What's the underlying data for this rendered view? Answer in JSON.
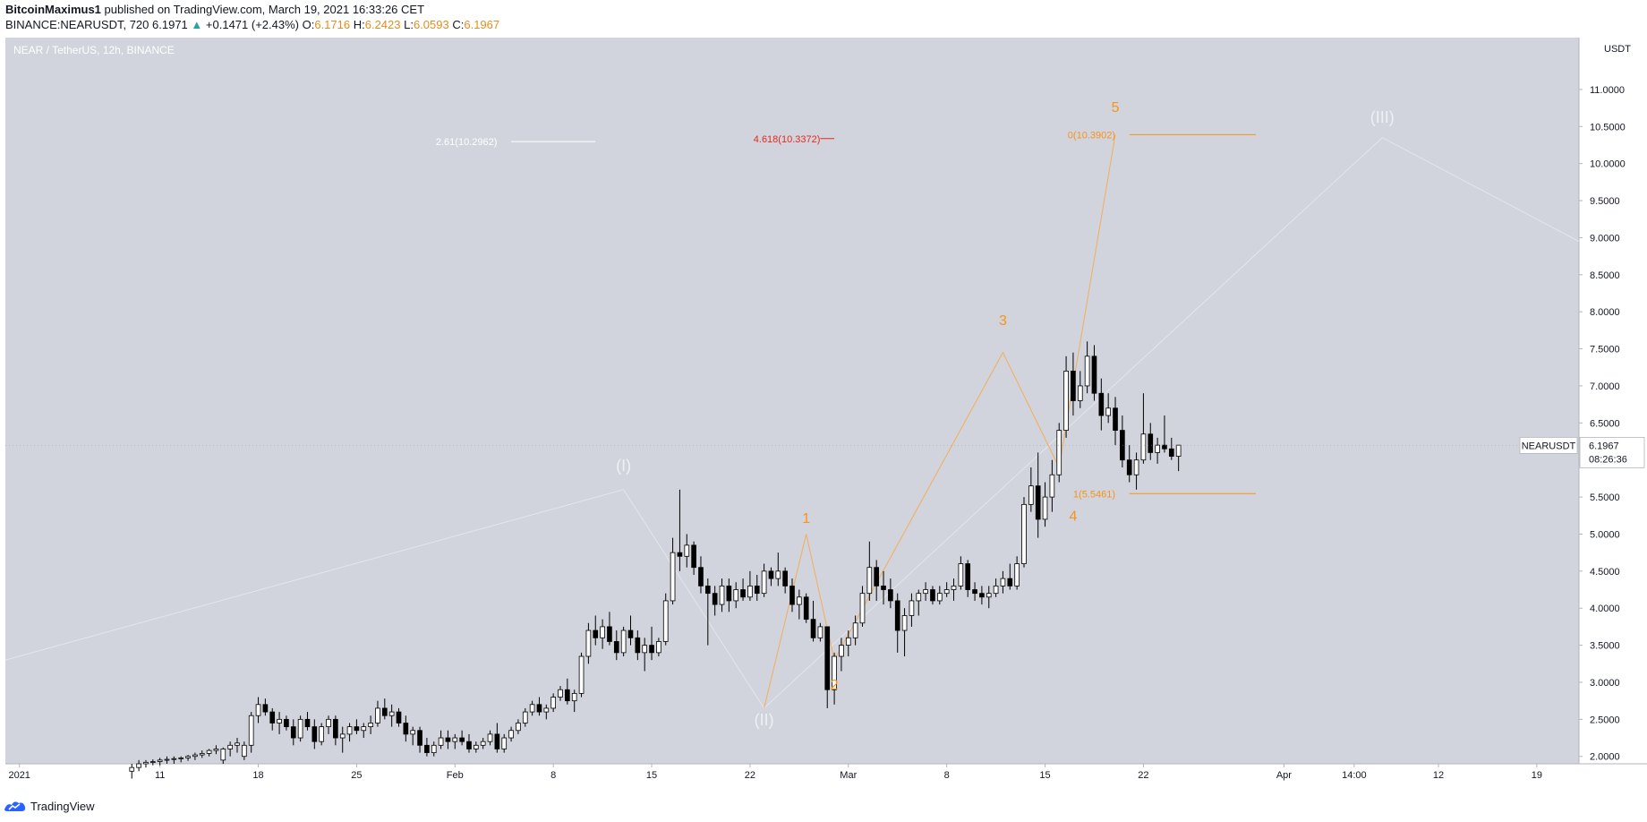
{
  "header": {
    "author": "BitcoinMaximus1",
    "published_text": "published on TradingView.com, March 19, 2021 16:33:26 CET",
    "symbol": "BINANCE:NEARUSDT, 720",
    "last": "6.1971",
    "change_arrow": "▲",
    "change": "+0.1471 (+2.43%)",
    "o_label": "O:",
    "o": "6.1716",
    "h_label": "H:",
    "h": "6.2423",
    "l_label": "L:",
    "l": "6.0593",
    "c_label": "C:",
    "c": "6.1967"
  },
  "footer": {
    "brand": "TradingView",
    "logo_icon": "tradingview-logo-icon"
  },
  "chart_data": {
    "type": "candlestick",
    "title": "NEAR / TetherUS, 12h, BINANCE",
    "currency": "USDT",
    "ylim": [
      1.9,
      11.7
    ],
    "y_ticks": [
      2.0,
      2.5,
      3.0,
      3.5,
      4.0,
      4.5,
      5.0,
      5.5,
      6.0,
      6.5,
      7.0,
      7.5,
      8.0,
      8.5,
      9.0,
      9.5,
      10.0,
      10.5,
      11.0
    ],
    "y_tick_labels": [
      "2.0000",
      "2.5000",
      "3.0000",
      "3.5000",
      "4.0000",
      "4.5000",
      "5.0000",
      "5.5000",
      "6.0000",
      "6.5000",
      "7.0000",
      "7.5000",
      "8.0000",
      "8.5000",
      "9.0000",
      "9.5000",
      "10.0000",
      "10.5000",
      "11.0000"
    ],
    "x_range": [
      "2020-12-31",
      "2021-04-22"
    ],
    "x_ticks": [
      {
        "date": "2021-01-01",
        "label": "2021"
      },
      {
        "date": "2021-01-11",
        "label": "11"
      },
      {
        "date": "2021-01-18",
        "label": "18"
      },
      {
        "date": "2021-01-25",
        "label": "25"
      },
      {
        "date": "2021-02-01",
        "label": "Feb"
      },
      {
        "date": "2021-02-08",
        "label": "8"
      },
      {
        "date": "2021-02-15",
        "label": "15"
      },
      {
        "date": "2021-02-22",
        "label": "22"
      },
      {
        "date": "2021-03-01",
        "label": "Mar"
      },
      {
        "date": "2021-03-08",
        "label": "8"
      },
      {
        "date": "2021-03-15",
        "label": "15"
      },
      {
        "date": "2021-03-22",
        "label": "22"
      },
      {
        "date": "2021-04-01",
        "label": "Apr"
      },
      {
        "date": "2021-04-06",
        "label": "14:00"
      },
      {
        "date": "2021-04-12",
        "label": "12"
      },
      {
        "date": "2021-04-19",
        "label": "19"
      }
    ],
    "first_candle": "2021-01-09",
    "candle_hours": 12,
    "candles": [
      [
        1.8,
        1.9,
        1.7,
        1.85
      ],
      [
        1.85,
        1.95,
        1.8,
        1.9
      ],
      [
        1.9,
        1.95,
        1.85,
        1.92
      ],
      [
        1.92,
        1.96,
        1.88,
        1.93
      ],
      [
        1.93,
        1.98,
        1.88,
        1.95
      ],
      [
        1.95,
        2.0,
        1.9,
        1.96
      ],
      [
        1.96,
        2.0,
        1.9,
        1.97
      ],
      [
        1.97,
        2.0,
        1.92,
        1.98
      ],
      [
        1.98,
        2.02,
        1.94,
        2.0
      ],
      [
        2.0,
        2.05,
        1.95,
        2.02
      ],
      [
        2.02,
        2.08,
        1.98,
        2.04
      ],
      [
        2.04,
        2.1,
        2.0,
        2.08
      ],
      [
        2.08,
        2.15,
        2.03,
        2.1
      ],
      [
        1.95,
        2.12,
        1.9,
        2.1
      ],
      [
        2.1,
        2.2,
        2.0,
        2.15
      ],
      [
        2.15,
        2.25,
        2.05,
        2.18
      ],
      [
        2.0,
        2.2,
        1.95,
        2.15
      ],
      [
        2.15,
        2.6,
        2.05,
        2.55
      ],
      [
        2.55,
        2.8,
        2.45,
        2.7
      ],
      [
        2.7,
        2.78,
        2.55,
        2.6
      ],
      [
        2.6,
        2.65,
        2.35,
        2.45
      ],
      [
        2.45,
        2.6,
        2.3,
        2.5
      ],
      [
        2.5,
        2.55,
        2.35,
        2.4
      ],
      [
        2.4,
        2.5,
        2.15,
        2.25
      ],
      [
        2.25,
        2.55,
        2.2,
        2.5
      ],
      [
        2.5,
        2.6,
        2.35,
        2.4
      ],
      [
        2.4,
        2.5,
        2.1,
        2.2
      ],
      [
        2.2,
        2.45,
        2.15,
        2.4
      ],
      [
        2.4,
        2.55,
        2.3,
        2.5
      ],
      [
        2.5,
        2.55,
        2.15,
        2.25
      ],
      [
        2.25,
        2.4,
        2.05,
        2.3
      ],
      [
        2.3,
        2.45,
        2.2,
        2.4
      ],
      [
        2.4,
        2.5,
        2.3,
        2.35
      ],
      [
        2.35,
        2.45,
        2.25,
        2.4
      ],
      [
        2.4,
        2.55,
        2.3,
        2.45
      ],
      [
        2.45,
        2.75,
        2.4,
        2.65
      ],
      [
        2.65,
        2.78,
        2.5,
        2.55
      ],
      [
        2.55,
        2.7,
        2.4,
        2.6
      ],
      [
        2.6,
        2.65,
        2.4,
        2.45
      ],
      [
        2.45,
        2.55,
        2.2,
        2.3
      ],
      [
        2.3,
        2.4,
        2.15,
        2.35
      ],
      [
        2.35,
        2.4,
        2.05,
        2.15
      ],
      [
        2.15,
        2.25,
        2.0,
        2.05
      ],
      [
        2.05,
        2.2,
        2.0,
        2.15
      ],
      [
        2.15,
        2.35,
        2.1,
        2.25
      ],
      [
        2.25,
        2.35,
        2.1,
        2.2
      ],
      [
        2.2,
        2.3,
        2.1,
        2.25
      ],
      [
        2.25,
        2.35,
        2.15,
        2.2
      ],
      [
        2.2,
        2.3,
        2.05,
        2.1
      ],
      [
        2.1,
        2.2,
        2.05,
        2.15
      ],
      [
        2.15,
        2.25,
        2.1,
        2.2
      ],
      [
        2.2,
        2.35,
        2.15,
        2.3
      ],
      [
        2.3,
        2.45,
        2.05,
        2.1
      ],
      [
        2.1,
        2.3,
        2.05,
        2.25
      ],
      [
        2.25,
        2.4,
        2.2,
        2.35
      ],
      [
        2.35,
        2.5,
        2.3,
        2.45
      ],
      [
        2.45,
        2.65,
        2.4,
        2.6
      ],
      [
        2.6,
        2.75,
        2.55,
        2.7
      ],
      [
        2.7,
        2.8,
        2.55,
        2.6
      ],
      [
        2.6,
        2.7,
        2.5,
        2.65
      ],
      [
        2.65,
        2.85,
        2.6,
        2.8
      ],
      [
        2.8,
        2.95,
        2.75,
        2.9
      ],
      [
        2.9,
        3.05,
        2.7,
        2.75
      ],
      [
        2.75,
        2.9,
        2.6,
        2.85
      ],
      [
        2.85,
        3.4,
        2.8,
        3.35
      ],
      [
        3.35,
        3.8,
        3.25,
        3.7
      ],
      [
        3.7,
        3.9,
        3.5,
        3.6
      ],
      [
        3.6,
        3.85,
        3.45,
        3.75
      ],
      [
        3.75,
        3.95,
        3.5,
        3.55
      ],
      [
        3.55,
        3.7,
        3.3,
        3.4
      ],
      [
        3.4,
        3.75,
        3.35,
        3.7
      ],
      [
        3.7,
        3.9,
        3.5,
        3.6
      ],
      [
        3.6,
        3.7,
        3.3,
        3.4
      ],
      [
        3.4,
        3.6,
        3.15,
        3.5
      ],
      [
        3.5,
        3.75,
        3.3,
        3.4
      ],
      [
        3.4,
        3.6,
        3.35,
        3.55
      ],
      [
        3.55,
        4.2,
        3.5,
        4.1
      ],
      [
        4.1,
        4.95,
        4.05,
        4.75
      ],
      [
        4.75,
        5.6,
        4.5,
        4.7
      ],
      [
        4.7,
        5.0,
        4.55,
        4.85
      ],
      [
        4.85,
        4.9,
        4.45,
        4.55
      ],
      [
        4.55,
        4.7,
        4.2,
        4.3
      ],
      [
        4.3,
        4.4,
        3.5,
        4.2
      ],
      [
        4.2,
        4.3,
        3.9,
        4.05
      ],
      [
        4.05,
        4.4,
        3.95,
        4.3
      ],
      [
        4.3,
        4.4,
        3.95,
        4.1
      ],
      [
        4.1,
        4.35,
        4.0,
        4.25
      ],
      [
        4.25,
        4.4,
        4.1,
        4.15
      ],
      [
        4.15,
        4.5,
        4.1,
        4.3
      ],
      [
        4.3,
        4.45,
        4.1,
        4.2
      ],
      [
        4.2,
        4.6,
        4.15,
        4.5
      ],
      [
        4.5,
        4.55,
        4.3,
        4.4
      ],
      [
        4.4,
        4.75,
        4.3,
        4.5
      ],
      [
        4.5,
        4.55,
        4.2,
        4.3
      ],
      [
        4.3,
        4.4,
        3.95,
        4.05
      ],
      [
        4.05,
        4.25,
        3.85,
        4.15
      ],
      [
        4.15,
        4.2,
        3.8,
        3.85
      ],
      [
        3.85,
        4.1,
        3.55,
        3.6
      ],
      [
        3.6,
        3.8,
        3.55,
        3.75
      ],
      [
        3.75,
        3.75,
        2.65,
        2.9
      ],
      [
        2.9,
        3.4,
        2.7,
        3.35
      ],
      [
        3.35,
        3.6,
        3.15,
        3.5
      ],
      [
        3.5,
        3.7,
        3.35,
        3.6
      ],
      [
        3.6,
        3.9,
        3.5,
        3.8
      ],
      [
        3.8,
        4.3,
        3.75,
        4.2
      ],
      [
        4.2,
        4.9,
        4.1,
        4.55
      ],
      [
        4.55,
        4.65,
        4.1,
        4.3
      ],
      [
        4.3,
        4.5,
        4.05,
        4.25
      ],
      [
        4.25,
        4.4,
        4.0,
        4.1
      ],
      [
        4.1,
        4.2,
        3.4,
        3.7
      ],
      [
        3.7,
        4.0,
        3.35,
        3.9
      ],
      [
        3.9,
        4.2,
        3.75,
        4.1
      ],
      [
        4.1,
        4.25,
        3.9,
        4.2
      ],
      [
        4.2,
        4.35,
        4.1,
        4.25
      ],
      [
        4.25,
        4.3,
        4.05,
        4.1
      ],
      [
        4.1,
        4.3,
        4.05,
        4.2
      ],
      [
        4.2,
        4.35,
        4.15,
        4.25
      ],
      [
        4.25,
        4.4,
        4.1,
        4.3
      ],
      [
        4.3,
        4.7,
        4.25,
        4.6
      ],
      [
        4.6,
        4.65,
        4.15,
        4.25
      ],
      [
        4.25,
        4.35,
        4.1,
        4.2
      ],
      [
        4.2,
        4.3,
        4.05,
        4.15
      ],
      [
        4.15,
        4.3,
        4.0,
        4.2
      ],
      [
        4.2,
        4.4,
        4.15,
        4.3
      ],
      [
        4.3,
        4.5,
        4.2,
        4.4
      ],
      [
        4.4,
        4.6,
        4.25,
        4.3
      ],
      [
        4.3,
        4.7,
        4.25,
        4.6
      ],
      [
        4.6,
        5.5,
        4.55,
        5.4
      ],
      [
        5.4,
        5.9,
        5.3,
        5.65
      ],
      [
        5.65,
        6.1,
        4.95,
        5.2
      ],
      [
        5.2,
        5.7,
        5.1,
        5.5
      ],
      [
        5.5,
        6.0,
        5.3,
        5.8
      ],
      [
        5.8,
        6.5,
        5.7,
        6.4
      ],
      [
        6.4,
        7.4,
        6.3,
        7.2
      ],
      [
        7.2,
        7.45,
        6.6,
        6.8
      ],
      [
        6.8,
        7.2,
        6.7,
        7.0
      ],
      [
        7.0,
        7.6,
        6.9,
        7.4
      ],
      [
        7.4,
        7.55,
        6.8,
        6.9
      ],
      [
        6.9,
        7.1,
        6.4,
        6.6
      ],
      [
        6.6,
        6.9,
        6.5,
        6.7
      ],
      [
        6.7,
        6.85,
        6.2,
        6.4
      ],
      [
        6.4,
        6.6,
        5.9,
        6.0
      ],
      [
        6.0,
        6.2,
        5.7,
        5.8
      ],
      [
        5.8,
        6.1,
        5.6,
        6.0
      ],
      [
        6.0,
        6.9,
        5.95,
        6.35
      ],
      [
        6.35,
        6.5,
        6.0,
        6.1
      ],
      [
        6.1,
        6.3,
        5.95,
        6.2
      ],
      [
        6.2,
        6.6,
        6.1,
        6.15
      ],
      [
        6.15,
        6.3,
        6.0,
        6.05
      ],
      [
        6.05,
        6.2,
        5.85,
        6.2
      ]
    ],
    "last_price": "6.1967",
    "countdown": "08:26:36",
    "symbol_label": "NEARUSDT",
    "wave_labels": [
      {
        "text": "(I)",
        "date": "2021-02-13",
        "price": 5.85,
        "color": "#eef0f5"
      },
      {
        "text": "(II)",
        "date": "2021-02-23",
        "price": 2.42,
        "color": "#eef0f5"
      },
      {
        "text": "(III)",
        "date": "2021-04-08",
        "price": 10.55,
        "color": "#eef0f5"
      },
      {
        "text": "1",
        "date": "2021-02-26",
        "price": 5.15,
        "color": "#f7931a"
      },
      {
        "text": "2",
        "date": "2021-02-28",
        "price": 2.9,
        "color": "#f7931a"
      },
      {
        "text": "3",
        "date": "2021-03-12",
        "price": 7.82,
        "color": "#f7931a"
      },
      {
        "text": "4",
        "date": "2021-03-17",
        "price": 5.18,
        "color": "#f7931a"
      },
      {
        "text": "5",
        "date": "2021-03-20",
        "price": 10.7,
        "color": "#f7931a"
      }
    ],
    "wave_white": [
      [
        "2020-12-31",
        3.3
      ],
      [
        "2021-02-13",
        5.6
      ],
      [
        "2021-02-23",
        2.65
      ],
      [
        "2021-04-08",
        10.35
      ],
      [
        "2021-04-22",
        8.95
      ]
    ],
    "wave_orange": [
      [
        "2021-02-23",
        2.65
      ],
      [
        "2021-02-26",
        5.0
      ],
      [
        "2021-02-28",
        3.3
      ],
      [
        "2021-03-12",
        7.45
      ],
      [
        "2021-03-16",
        5.9
      ],
      [
        "2021-03-20",
        10.39
      ]
    ],
    "levels": [
      {
        "label": "2.61(10.2962)",
        "price": 10.2962,
        "date_start": "2021-02-05",
        "date_end": "2021-02-11",
        "color": "#ffffff",
        "label_date": "2021-02-04"
      },
      {
        "label": "4.618(10.3372)",
        "price": 10.3372,
        "date_start": "2021-02-27",
        "date_end": "2021-02-28",
        "color": "#e8281c",
        "label_date": "2021-02-27"
      },
      {
        "label": "0(10.3902)",
        "price": 10.3902,
        "date_start": "2021-03-21",
        "date_end": "2021-03-30",
        "color": "#f7931a",
        "label_date": "2021-03-20"
      },
      {
        "label": "1(5.5461)",
        "price": 5.5461,
        "date_start": "2021-03-21",
        "date_end": "2021-03-30",
        "color": "#f7931a",
        "label_date": "2021-03-20"
      }
    ]
  }
}
